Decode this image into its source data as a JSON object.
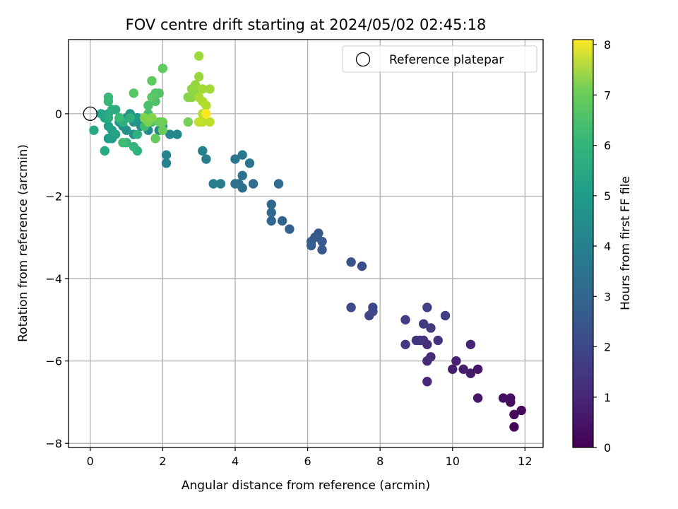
{
  "chart_data": {
    "type": "scatter",
    "title": "FOV centre drift starting at 2024/05/02 02:45:18",
    "xlabel": "Angular distance from reference (arcmin)",
    "ylabel": "Rotation from reference (arcmin)",
    "xlim": [
      -0.6,
      12.5
    ],
    "ylim": [
      -8.1,
      1.8
    ],
    "xticks": [
      0,
      2,
      4,
      6,
      8,
      10,
      12
    ],
    "yticks": [
      -8,
      -6,
      -4,
      -2,
      0
    ],
    "grid": true,
    "legend": {
      "placement": "top-right",
      "entries": [
        "Reference platepar"
      ]
    },
    "reference_point": {
      "x": 0,
      "y": 0
    },
    "colorbar": {
      "label": "Hours from first FF file",
      "range": [
        0,
        8.1
      ],
      "ticks": [
        0,
        1,
        2,
        3,
        4,
        5,
        6,
        7,
        8
      ],
      "colormap": "viridis"
    },
    "points": [
      {
        "x": 11.7,
        "y": -7.6,
        "c": 0.1
      },
      {
        "x": 11.9,
        "y": -7.2,
        "c": 0.15
      },
      {
        "x": 11.7,
        "y": -7.3,
        "c": 0.2
      },
      {
        "x": 11.6,
        "y": -7.0,
        "c": 0.25
      },
      {
        "x": 11.4,
        "y": -6.9,
        "c": 0.3
      },
      {
        "x": 11.6,
        "y": -6.9,
        "c": 0.35
      },
      {
        "x": 10.7,
        "y": -6.9,
        "c": 0.45
      },
      {
        "x": 10.7,
        "y": -6.2,
        "c": 0.5
      },
      {
        "x": 10.5,
        "y": -6.3,
        "c": 0.55
      },
      {
        "x": 10.5,
        "y": -6.3,
        "c": 0.6
      },
      {
        "x": 10.3,
        "y": -6.2,
        "c": 0.65
      },
      {
        "x": 10.0,
        "y": -6.2,
        "c": 0.7
      },
      {
        "x": 10.1,
        "y": -6.0,
        "c": 0.75
      },
      {
        "x": 10.5,
        "y": -5.6,
        "c": 0.8
      },
      {
        "x": 9.3,
        "y": -6.5,
        "c": 0.9
      },
      {
        "x": 9.3,
        "y": -6.0,
        "c": 0.95
      },
      {
        "x": 9.4,
        "y": -5.9,
        "c": 1.0
      },
      {
        "x": 9.3,
        "y": -5.6,
        "c": 1.05
      },
      {
        "x": 9.2,
        "y": -5.5,
        "c": 1.1
      },
      {
        "x": 9.6,
        "y": -5.5,
        "c": 1.15
      },
      {
        "x": 9.0,
        "y": -5.5,
        "c": 1.2
      },
      {
        "x": 9.1,
        "y": -5.5,
        "c": 1.25
      },
      {
        "x": 8.7,
        "y": -5.6,
        "c": 1.3
      },
      {
        "x": 9.4,
        "y": -5.2,
        "c": 1.35
      },
      {
        "x": 9.2,
        "y": -5.1,
        "c": 1.4
      },
      {
        "x": 8.7,
        "y": -5.0,
        "c": 1.45
      },
      {
        "x": 9.8,
        "y": -4.9,
        "c": 1.5
      },
      {
        "x": 9.3,
        "y": -4.7,
        "c": 1.55
      },
      {
        "x": 7.8,
        "y": -4.7,
        "c": 1.7
      },
      {
        "x": 7.7,
        "y": -4.9,
        "c": 1.75
      },
      {
        "x": 7.8,
        "y": -4.8,
        "c": 1.8
      },
      {
        "x": 7.2,
        "y": -4.7,
        "c": 1.85
      },
      {
        "x": 7.5,
        "y": -3.7,
        "c": 2.0
      },
      {
        "x": 7.2,
        "y": -3.6,
        "c": 2.05
      },
      {
        "x": 6.4,
        "y": -3.3,
        "c": 2.2
      },
      {
        "x": 6.4,
        "y": -3.1,
        "c": 2.25
      },
      {
        "x": 6.3,
        "y": -2.9,
        "c": 2.3
      },
      {
        "x": 6.2,
        "y": -3.0,
        "c": 2.35
      },
      {
        "x": 6.1,
        "y": -3.1,
        "c": 2.4
      },
      {
        "x": 6.1,
        "y": -3.2,
        "c": 2.45
      },
      {
        "x": 5.5,
        "y": -2.8,
        "c": 2.55
      },
      {
        "x": 5.3,
        "y": -2.6,
        "c": 2.6
      },
      {
        "x": 5.0,
        "y": -2.6,
        "c": 2.65
      },
      {
        "x": 5.0,
        "y": -2.4,
        "c": 2.7
      },
      {
        "x": 5.0,
        "y": -2.2,
        "c": 2.75
      },
      {
        "x": 5.2,
        "y": -1.7,
        "c": 2.85
      },
      {
        "x": 4.5,
        "y": -1.7,
        "c": 2.9
      },
      {
        "x": 4.2,
        "y": -1.8,
        "c": 2.95
      },
      {
        "x": 4.1,
        "y": -1.7,
        "c": 3.0
      },
      {
        "x": 4.0,
        "y": -1.7,
        "c": 3.05
      },
      {
        "x": 4.2,
        "y": -1.5,
        "c": 3.1
      },
      {
        "x": 4.4,
        "y": -1.2,
        "c": 3.15
      },
      {
        "x": 4.0,
        "y": -1.1,
        "c": 3.2
      },
      {
        "x": 4.2,
        "y": -1.0,
        "c": 3.25
      },
      {
        "x": 3.6,
        "y": -1.7,
        "c": 3.35
      },
      {
        "x": 3.4,
        "y": -1.7,
        "c": 3.4
      },
      {
        "x": 3.2,
        "y": -1.1,
        "c": 3.45
      },
      {
        "x": 3.1,
        "y": -0.9,
        "c": 3.5
      },
      {
        "x": 2.1,
        "y": -1.2,
        "c": 3.6
      },
      {
        "x": 2.1,
        "y": -1.0,
        "c": 3.65
      },
      {
        "x": 2.4,
        "y": -0.5,
        "c": 3.7
      },
      {
        "x": 2.2,
        "y": -0.5,
        "c": 3.75
      },
      {
        "x": 2.0,
        "y": -0.3,
        "c": 3.8
      },
      {
        "x": 1.9,
        "y": -0.4,
        "c": 3.85
      },
      {
        "x": 1.6,
        "y": -0.4,
        "c": 3.9
      },
      {
        "x": 1.4,
        "y": -0.3,
        "c": 3.95
      },
      {
        "x": 1.2,
        "y": -0.5,
        "c": 4.0
      },
      {
        "x": 1.0,
        "y": -0.4,
        "c": 4.05
      },
      {
        "x": 0.9,
        "y": -0.3,
        "c": 4.1
      },
      {
        "x": 1.0,
        "y": -0.1,
        "c": 4.15
      },
      {
        "x": 1.2,
        "y": -0.2,
        "c": 4.2
      },
      {
        "x": 1.1,
        "y": 0.0,
        "c": 4.25
      },
      {
        "x": 1.3,
        "y": -0.1,
        "c": 4.3
      },
      {
        "x": 0.8,
        "y": -0.2,
        "c": 4.35
      },
      {
        "x": 0.6,
        "y": -0.6,
        "c": 4.45
      },
      {
        "x": 0.5,
        "y": -0.6,
        "c": 4.5
      },
      {
        "x": 0.6,
        "y": -0.4,
        "c": 4.55
      },
      {
        "x": 0.5,
        "y": -0.3,
        "c": 4.6
      },
      {
        "x": 0.7,
        "y": -0.5,
        "c": 4.65
      },
      {
        "x": 0.4,
        "y": -0.1,
        "c": 4.7
      },
      {
        "x": 0.3,
        "y": 0.0,
        "c": 4.75
      },
      {
        "x": 0.5,
        "y": 0.0,
        "c": 4.8
      },
      {
        "x": 0.4,
        "y": -0.9,
        "c": 4.85
      },
      {
        "x": 0.1,
        "y": -0.4,
        "c": 4.9
      },
      {
        "x": 0.5,
        "y": -0.1,
        "c": 4.95
      },
      {
        "x": 0.6,
        "y": 0.1,
        "c": 5.0
      },
      {
        "x": 0.7,
        "y": 0.1,
        "c": 5.05
      },
      {
        "x": 0.9,
        "y": -0.2,
        "c": 5.1
      },
      {
        "x": 1.1,
        "y": -0.1,
        "c": 5.15
      },
      {
        "x": 1.3,
        "y": -0.5,
        "c": 5.2
      },
      {
        "x": 1.3,
        "y": -0.9,
        "c": 5.25
      },
      {
        "x": 1.2,
        "y": -0.8,
        "c": 5.3
      },
      {
        "x": 1.0,
        "y": -0.7,
        "c": 5.35
      },
      {
        "x": 0.5,
        "y": 0.3,
        "c": 5.4
      },
      {
        "x": 0.5,
        "y": 0.4,
        "c": 5.45
      },
      {
        "x": 0.8,
        "y": -0.1,
        "c": 5.5
      },
      {
        "x": 0.9,
        "y": -0.7,
        "c": 5.55
      },
      {
        "x": 1.5,
        "y": -0.3,
        "c": 5.6
      },
      {
        "x": 1.6,
        "y": 0.0,
        "c": 5.65
      },
      {
        "x": 1.7,
        "y": -0.2,
        "c": 5.7
      },
      {
        "x": 1.6,
        "y": 0.2,
        "c": 5.75
      },
      {
        "x": 1.8,
        "y": 0.3,
        "c": 5.8
      },
      {
        "x": 1.8,
        "y": 0.5,
        "c": 5.85
      },
      {
        "x": 1.9,
        "y": 0.5,
        "c": 5.9
      },
      {
        "x": 1.2,
        "y": 0.5,
        "c": 5.95
      },
      {
        "x": 1.7,
        "y": 0.4,
        "c": 6.0
      },
      {
        "x": 1.7,
        "y": 0.8,
        "c": 6.05
      },
      {
        "x": 2.0,
        "y": 1.1,
        "c": 6.1
      },
      {
        "x": 1.8,
        "y": -0.6,
        "c": 6.15
      },
      {
        "x": 2.0,
        "y": -0.4,
        "c": 6.2
      },
      {
        "x": 1.9,
        "y": -0.2,
        "c": 6.25
      },
      {
        "x": 2.0,
        "y": -0.2,
        "c": 6.3
      },
      {
        "x": 2.7,
        "y": -0.2,
        "c": 6.4
      },
      {
        "x": 1.6,
        "y": -0.2,
        "c": 6.45
      },
      {
        "x": 1.5,
        "y": -0.1,
        "c": 6.5
      },
      {
        "x": 1.7,
        "y": -0.1,
        "c": 6.55
      },
      {
        "x": 2.7,
        "y": 0.4,
        "c": 6.6
      },
      {
        "x": 2.8,
        "y": 0.4,
        "c": 6.65
      },
      {
        "x": 2.9,
        "y": 0.5,
        "c": 6.7
      },
      {
        "x": 2.8,
        "y": 0.6,
        "c": 6.75
      },
      {
        "x": 2.9,
        "y": 0.7,
        "c": 6.8
      },
      {
        "x": 3.0,
        "y": 0.9,
        "c": 6.85
      },
      {
        "x": 3.0,
        "y": 1.4,
        "c": 6.9
      },
      {
        "x": 3.3,
        "y": 0.6,
        "c": 6.95
      },
      {
        "x": 3.1,
        "y": 0.6,
        "c": 7.0
      },
      {
        "x": 3.0,
        "y": 0.4,
        "c": 7.05
      },
      {
        "x": 3.1,
        "y": 0.3,
        "c": 7.1
      },
      {
        "x": 3.2,
        "y": 0.2,
        "c": 7.15
      },
      {
        "x": 3.1,
        "y": 0.0,
        "c": 7.2
      },
      {
        "x": 3.1,
        "y": -0.2,
        "c": 7.25
      },
      {
        "x": 3.3,
        "y": -0.2,
        "c": 7.3
      },
      {
        "x": 3.0,
        "y": -0.2,
        "c": 7.35
      },
      {
        "x": 3.2,
        "y": 0.0,
        "c": 8.1
      }
    ]
  },
  "colors": {
    "reference_marker": "#000000",
    "grid": "#b0b0b0",
    "background": "#ffffff"
  }
}
